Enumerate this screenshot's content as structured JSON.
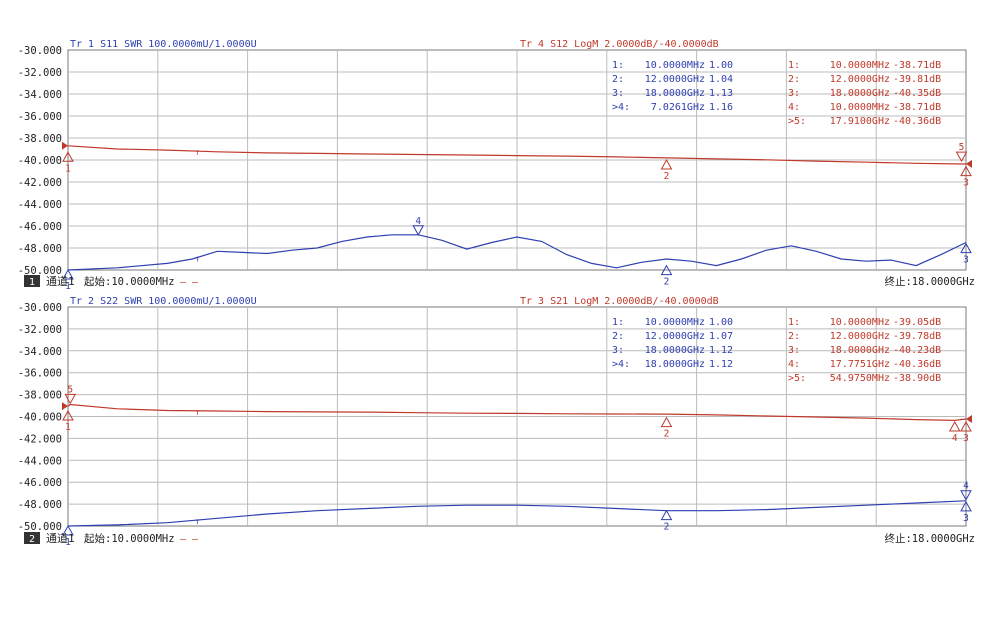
{
  "colors": {
    "trace_red": "#c0392b",
    "trace_blue": "#2f3fb0",
    "grid": "#bcbcbc",
    "frame": "#7a7a7a",
    "axis_text": "#222222",
    "channel_badge_bg": "#333333",
    "channel_badge_fg": "#ffffff"
  },
  "panels": [
    {
      "channel_number": "1",
      "channel_label": "通道1",
      "start_label": "起始:10.0000MHz",
      "stop_label": "终止:18.0000GHz",
      "legend_dash": "— —",
      "trace_title_blue": "Tr 1  S11 SWR 100.0000mU/1.0000U",
      "trace_title_red": "Tr 4  S12 LogM 2.0000dB/-40.0000dB",
      "y_ticks": [
        "-30.000",
        "-32.000",
        "-34.000",
        "-36.000",
        "-38.000",
        "-40.000",
        "-42.000",
        "-44.000",
        "-46.000",
        "-48.000",
        "-50.000"
      ],
      "blue_markers_table": [
        {
          "id": "1:",
          "freq": "10.0000MHz",
          "val": "1.00"
        },
        {
          "id": "2:",
          "freq": "12.0000GHz",
          "val": "1.04"
        },
        {
          "id": "3:",
          "freq": "18.0000GHz",
          "val": "1.13"
        },
        {
          "id": ">4:",
          "freq": "7.0261GHz",
          "val": "1.16"
        }
      ],
      "red_markers_table": [
        {
          "id": "1:",
          "freq": "10.0000MHz",
          "val": "-38.71dB"
        },
        {
          "id": "2:",
          "freq": "12.0000GHz",
          "val": "-39.81dB"
        },
        {
          "id": "3:",
          "freq": "18.0000GHz",
          "val": "-40.35dB"
        },
        {
          "id": "4:",
          "freq": "10.0000MHz",
          "val": "-38.71dB"
        },
        {
          "id": ">5:",
          "freq": "17.9100GHz",
          "val": "-40.36dB"
        }
      ],
      "blue_marker_labels": [
        {
          "label": "1",
          "x_ghz": 0.01,
          "y": -50.0,
          "dir": "up"
        },
        {
          "label": "2",
          "x_ghz": 12.0,
          "y": -49.6,
          "dir": "up"
        },
        {
          "label": "3",
          "x_ghz": 18.0,
          "y": -47.6,
          "dir": "up"
        },
        {
          "label": "4",
          "x_ghz": 7.0261,
          "y": -46.8,
          "dir": "down"
        }
      ],
      "red_marker_labels": [
        {
          "label": "1",
          "x_ghz": 0.01,
          "y": -39.3,
          "dir": "up"
        },
        {
          "label": "2",
          "x_ghz": 12.0,
          "y": -40.0,
          "dir": "up"
        },
        {
          "label": "3",
          "x_ghz": 18.0,
          "y": -40.6,
          "dir": "up"
        },
        {
          "label": "5",
          "x_ghz": 17.91,
          "y": -40.1,
          "dir": "down"
        }
      ]
    },
    {
      "channel_number": "2",
      "channel_label": "通道1",
      "start_label": "起始:10.0000MHz",
      "stop_label": "终止:18.0000GHz",
      "legend_dash": "— —",
      "trace_title_blue": "Tr 2  S22 SWR 100.0000mU/1.0000U",
      "trace_title_red": "Tr 3  S21 LogM 2.0000dB/-40.0000dB",
      "y_ticks": [
        "-30.000",
        "-32.000",
        "-34.000",
        "-36.000",
        "-38.000",
        "-40.000",
        "-42.000",
        "-44.000",
        "-46.000",
        "-48.000",
        "-50.000"
      ],
      "blue_markers_table": [
        {
          "id": "1:",
          "freq": "10.0000MHz",
          "val": "1.00"
        },
        {
          "id": "2:",
          "freq": "12.0000GHz",
          "val": "1.07"
        },
        {
          "id": "3:",
          "freq": "18.0000GHz",
          "val": "1.12"
        },
        {
          "id": ">4:",
          "freq": "18.0000GHz",
          "val": "1.12"
        }
      ],
      "red_markers_table": [
        {
          "id": "1:",
          "freq": "10.0000MHz",
          "val": "-39.05dB"
        },
        {
          "id": "2:",
          "freq": "12.0000GHz",
          "val": "-39.78dB"
        },
        {
          "id": "3:",
          "freq": "18.0000GHz",
          "val": "-40.23dB"
        },
        {
          "id": "4:",
          "freq": "17.7751GHz",
          "val": "-40.36dB"
        },
        {
          "id": ">5:",
          "freq": "54.9750MHz",
          "val": "-38.90dB"
        }
      ],
      "blue_marker_labels": [
        {
          "label": "1",
          "x_ghz": 0.01,
          "y": -50.0,
          "dir": "up"
        },
        {
          "label": "2",
          "x_ghz": 12.0,
          "y": -48.6,
          "dir": "up"
        },
        {
          "label": "3",
          "x_ghz": 18.0,
          "y": -47.8,
          "dir": "up"
        },
        {
          "label": "4",
          "x_ghz": 18.0,
          "y": -47.6,
          "dir": "down"
        }
      ],
      "red_marker_labels": [
        {
          "label": "1",
          "x_ghz": 0.01,
          "y": -39.5,
          "dir": "up"
        },
        {
          "label": "2",
          "x_ghz": 12.0,
          "y": -40.1,
          "dir": "up"
        },
        {
          "label": "3",
          "x_ghz": 18.0,
          "y": -40.5,
          "dir": "up"
        },
        {
          "label": "4",
          "x_ghz": 17.7751,
          "y": -40.5,
          "dir": "up"
        },
        {
          "label": "5",
          "x_ghz": 0.055,
          "y": -38.8,
          "dir": "down"
        }
      ]
    }
  ],
  "chart_data": [
    {
      "type": "line",
      "title": "",
      "xlabel": "",
      "ylabel": "",
      "xlim": [
        0.01,
        18.0
      ],
      "ylim": [
        -50.0,
        -30.0
      ],
      "grid": true,
      "legend": "top",
      "series": [
        {
          "name": "Tr 4  S12 LogM 2.0000dB/-40.0000dB",
          "color": "#c0392b",
          "x": [
            0.01,
            1,
            2,
            3,
            4,
            5,
            6,
            7,
            8,
            9,
            10,
            11,
            12,
            13,
            14,
            15,
            16,
            17,
            17.91,
            18.0
          ],
          "y": [
            -38.71,
            -39.0,
            -39.1,
            -39.25,
            -39.35,
            -39.4,
            -39.45,
            -39.5,
            -39.55,
            -39.6,
            -39.65,
            -39.72,
            -39.81,
            -39.9,
            -39.98,
            -40.1,
            -40.2,
            -40.3,
            -40.36,
            -40.35
          ]
        },
        {
          "name": "Tr 1  S11 SWR 100.0000mU/1.0000U",
          "color": "#2f3fb0",
          "x": [
            0.01,
            1,
            2,
            2.5,
            3,
            3.5,
            4,
            4.5,
            5,
            5.5,
            6,
            6.5,
            7.03,
            7.5,
            8,
            8.5,
            9,
            9.5,
            10,
            10.5,
            11,
            11.5,
            12,
            12.5,
            13,
            13.5,
            14,
            14.5,
            15,
            15.5,
            16,
            16.5,
            17,
            17.5,
            18.0
          ],
          "y": [
            -50.0,
            -49.8,
            -49.4,
            -49.0,
            -48.3,
            -48.4,
            -48.5,
            -48.2,
            -48.0,
            -47.4,
            -47.0,
            -46.8,
            -46.8,
            -47.3,
            -48.1,
            -47.5,
            -47.0,
            -47.4,
            -48.6,
            -49.4,
            -49.8,
            -49.3,
            -49.0,
            -49.2,
            -49.6,
            -49.0,
            -48.2,
            -47.8,
            -48.3,
            -49.0,
            -49.2,
            -49.1,
            -49.6,
            -48.6,
            -47.5
          ]
        }
      ]
    },
    {
      "type": "line",
      "title": "",
      "xlabel": "",
      "ylabel": "",
      "xlim": [
        0.01,
        18.0
      ],
      "ylim": [
        -50.0,
        -30.0
      ],
      "grid": true,
      "legend": "top",
      "series": [
        {
          "name": "Tr 3  S21 LogM 2.0000dB/-40.0000dB",
          "color": "#c0392b",
          "x": [
            0.01,
            0.055,
            1,
            2,
            3,
            4,
            5,
            6,
            7,
            8,
            9,
            10,
            11,
            12,
            13,
            14,
            15,
            16,
            17,
            17.78,
            18.0
          ],
          "y": [
            -39.05,
            -38.9,
            -39.3,
            -39.45,
            -39.5,
            -39.55,
            -39.58,
            -39.6,
            -39.65,
            -39.7,
            -39.72,
            -39.75,
            -39.77,
            -39.78,
            -39.85,
            -39.95,
            -40.05,
            -40.15,
            -40.28,
            -40.36,
            -40.23
          ]
        },
        {
          "name": "Tr 2  S22 SWR 100.0000mU/1.0000U",
          "color": "#2f3fb0",
          "x": [
            0.01,
            1,
            2,
            3,
            4,
            5,
            6,
            7,
            8,
            9,
            10,
            11,
            12,
            13,
            14,
            15,
            16,
            17,
            18.0
          ],
          "y": [
            -50.0,
            -49.9,
            -49.7,
            -49.3,
            -48.9,
            -48.6,
            -48.4,
            -48.2,
            -48.1,
            -48.1,
            -48.2,
            -48.4,
            -48.6,
            -48.6,
            -48.5,
            -48.3,
            -48.1,
            -47.9,
            -47.7
          ]
        }
      ]
    }
  ]
}
